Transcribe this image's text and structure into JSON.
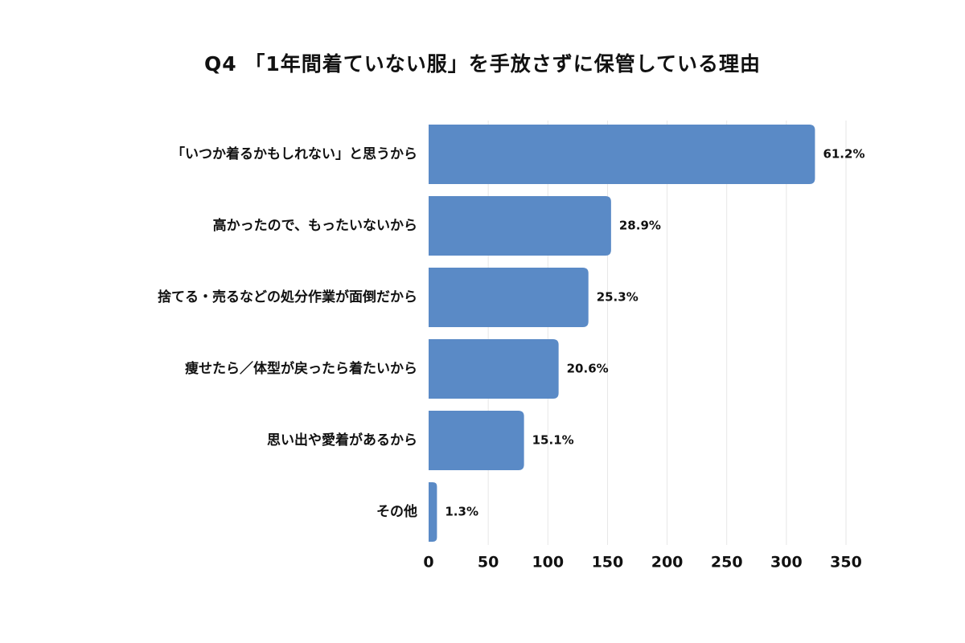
{
  "chart_data": {
    "type": "bar",
    "orientation": "horizontal",
    "title": "Q4 「1年間着ていない服」を手放さずに保管している理由",
    "categories": [
      "「いつか着るかもしれない」と思うから",
      "高かったので、もったいないから",
      "捨てる・売るなどの処分作業が面倒だから",
      "痩せたら／体型が戻ったら着たいから",
      "思い出や愛着があるから",
      "その他"
    ],
    "values": [
      324,
      153,
      134,
      109,
      80,
      7
    ],
    "data_labels": [
      "61.2%",
      "28.9%",
      "25.3%",
      "20.6%",
      "15.1%",
      "1.3%"
    ],
    "xlim": [
      0,
      350
    ],
    "xticks": [
      0,
      50,
      100,
      150,
      200,
      250,
      300,
      350
    ],
    "xtick_labels": [
      "0",
      "50",
      "100",
      "150",
      "200",
      "250",
      "300",
      "350"
    ],
    "grid": "vertical",
    "bar_color": "#5a8ac6",
    "grid_color": "#e6e6e6"
  }
}
